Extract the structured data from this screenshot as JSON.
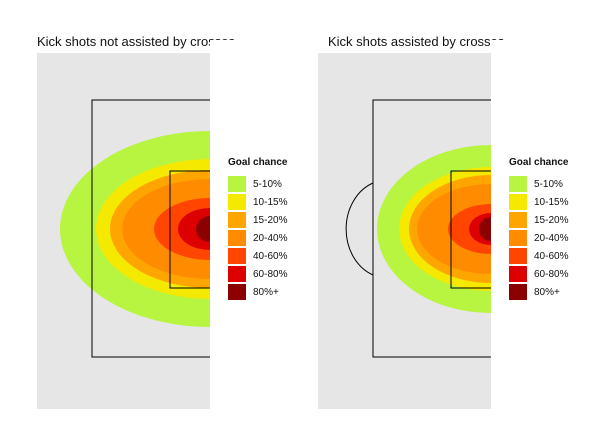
{
  "chart_data": [
    {
      "type": "heatmap",
      "title": "Kick shots not assisted by crosses",
      "penalty_arc": false,
      "legend": {
        "title": "Goal chance",
        "placement": "right",
        "bins": [
          {
            "label": "5-10%",
            "color": "#b8f540"
          },
          {
            "label": "10-15%",
            "color": "#f5e900"
          },
          {
            "label": "15-20%",
            "color": "#ffa500"
          },
          {
            "label": "20-40%",
            "color": "#ff8c00"
          },
          {
            "label": "40-60%",
            "color": "#ff4500"
          },
          {
            "label": "60-80%",
            "color": "#dd0000"
          },
          {
            "label": "80%+",
            "color": "#8b0000"
          }
        ]
      }
    },
    {
      "type": "heatmap",
      "title": "Kick shots assisted by crosses",
      "penalty_arc": true,
      "legend": {
        "title": "Goal chance",
        "placement": "right",
        "bins": [
          {
            "label": "5-10%",
            "color": "#b8f540"
          },
          {
            "label": "10-15%",
            "color": "#f5e900"
          },
          {
            "label": "15-20%",
            "color": "#ffa500"
          },
          {
            "label": "20-40%",
            "color": "#ff8c00"
          },
          {
            "label": "40-60%",
            "color": "#ff4500"
          },
          {
            "label": "60-80%",
            "color": "#dd0000"
          },
          {
            "label": "80%+",
            "color": "#8b0000"
          }
        ]
      }
    }
  ]
}
